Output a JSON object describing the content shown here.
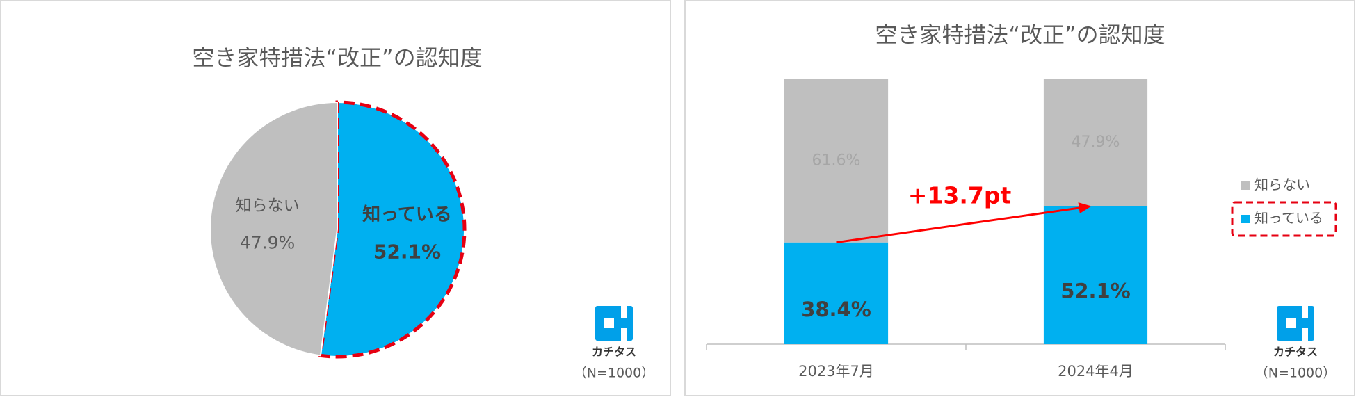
{
  "chart_data": [
    {
      "type": "pie",
      "title": "空き家特措法“改正”の認知度",
      "categories": [
        "知っている",
        "知らない"
      ],
      "values": [
        52.1,
        47.9
      ],
      "value_labels": [
        "52.1%",
        "47.9%"
      ],
      "colors": [
        "#00b0f0",
        "#bfbfbf"
      ],
      "highlight": "知っている",
      "brand": "カチタス",
      "note": "（N=1000）"
    },
    {
      "type": "stacked_bar",
      "title": "空き家特措法“改正”の認知度",
      "categories": [
        "2023年7月",
        "2024年4月"
      ],
      "series": [
        {
          "name": "知っている",
          "color": "#00b0f0",
          "values": [
            38.4,
            52.1
          ],
          "value_labels": [
            "38.4%",
            "52.1%"
          ]
        },
        {
          "name": "知らない",
          "color": "#bfbfbf",
          "values": [
            61.6,
            47.9
          ],
          "value_labels": [
            "61.6%",
            "47.9%"
          ]
        }
      ],
      "ylim": [
        0,
        100
      ],
      "annotation": "+13.7pt",
      "legend": "right",
      "highlight": "知っている",
      "brand": "カチタス",
      "note": "（N=1000）"
    }
  ]
}
